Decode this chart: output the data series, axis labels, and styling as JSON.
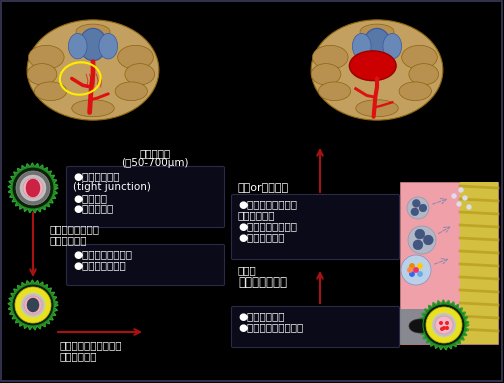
{
  "bg_color": "#000000",
  "text_color": "#ffffff",
  "label_vessel_title": "穿通枝動脈",
  "label_vessel_sub": "(径50-700μm)",
  "label_box1_line1": "●血管内皮細胞",
  "label_box1_line2": "(tight junction)",
  "label_box1_line3": "●平滑筋層",
  "label_box1_line4": "●血管周囲腔",
  "label_hypertension_line1": "高血圧にともなう",
  "label_hypertension_line2": "リモデリング",
  "label_box2_line1": "●平滑筋細胞の脱核",
  "label_box2_line2": "●コラーゲン沈着",
  "label_aging_line1": "加齢、酸素ストレス、",
  "label_aging_line2": "慢性炎　など",
  "label_acute": "急性or慢性炎症",
  "label_box3_line1": "●１型コラーゲンと",
  "label_box3_line2": "　細菌の結合",
  "label_box3_line3": "●血小板凝集の陰害",
  "label_box3_line4": "●好中球の浸潤",
  "label_bacteremia": "菌血症",
  "label_mutans": "ミュータンス菌",
  "label_box4_line1": "●血管内皮障害",
  "label_box4_line2": "●血管内皮透過性了進"
}
